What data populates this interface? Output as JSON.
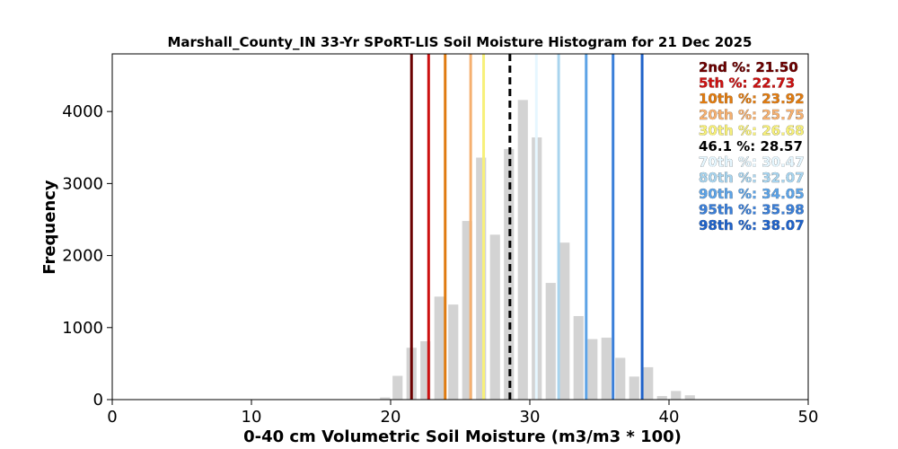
{
  "chart_data": {
    "type": "bar",
    "title": "Marshall_County_IN 33-Yr SPoRT-LIS Soil Moisture Histogram for 21 Dec 2025",
    "xlabel": "0-40 cm Volumetric Soil Moisture (m3/m3 * 100)",
    "ylabel": "Frequency",
    "xlim": [
      0,
      50
    ],
    "ylim": [
      0,
      4800
    ],
    "xticks": [
      0,
      10,
      20,
      30,
      40,
      50
    ],
    "yticks": [
      0,
      1000,
      2000,
      3000,
      4000
    ],
    "grid": false,
    "bar_color": "#d3d3d3",
    "bins": [
      {
        "x": 19.6,
        "count": 30
      },
      {
        "x": 20.5,
        "count": 330
      },
      {
        "x": 21.5,
        "count": 720
      },
      {
        "x": 22.5,
        "count": 810
      },
      {
        "x": 23.5,
        "count": 1430
      },
      {
        "x": 24.5,
        "count": 1320
      },
      {
        "x": 25.5,
        "count": 2480
      },
      {
        "x": 26.5,
        "count": 3360
      },
      {
        "x": 27.5,
        "count": 2290
      },
      {
        "x": 28.5,
        "count": 3480
      },
      {
        "x": 29.5,
        "count": 4160
      },
      {
        "x": 30.5,
        "count": 3640
      },
      {
        "x": 31.5,
        "count": 1620
      },
      {
        "x": 32.5,
        "count": 2180
      },
      {
        "x": 33.5,
        "count": 1160
      },
      {
        "x": 34.5,
        "count": 840
      },
      {
        "x": 35.5,
        "count": 860
      },
      {
        "x": 36.5,
        "count": 580
      },
      {
        "x": 37.5,
        "count": 320
      },
      {
        "x": 38.5,
        "count": 450
      },
      {
        "x": 39.5,
        "count": 50
      },
      {
        "x": 40.5,
        "count": 120
      },
      {
        "x": 41.5,
        "count": 60
      }
    ],
    "percentile_lines": [
      {
        "label": "2nd %: 21.50",
        "value": 21.5,
        "color": "#6b0000",
        "dashed": false
      },
      {
        "label": "5th %: 22.73",
        "value": 22.73,
        "color": "#cc1111",
        "dashed": false
      },
      {
        "label": "10th %: 23.92",
        "value": 23.92,
        "color": "#e07b10",
        "dashed": false
      },
      {
        "label": "20th %: 25.75",
        "value": 25.75,
        "color": "#f5b070",
        "dashed": false
      },
      {
        "label": "30th %: 26.68",
        "value": 26.68,
        "color": "#f7f07a",
        "dashed": false
      },
      {
        "label": "46.1 %: 28.57",
        "value": 28.57,
        "color": "#000000",
        "dashed": true
      },
      {
        "label": "70th %: 30.47",
        "value": 30.47,
        "color": "#e6f7ff",
        "dashed": false
      },
      {
        "label": "80th %: 32.07",
        "value": 32.07,
        "color": "#a8d4ee",
        "dashed": false
      },
      {
        "label": "90th %: 34.05",
        "value": 34.05,
        "color": "#5da3e6",
        "dashed": false
      },
      {
        "label": "95th %: 35.98",
        "value": 35.98,
        "color": "#3a7fd9",
        "dashed": false
      },
      {
        "label": "98th %: 38.07",
        "value": 38.07,
        "color": "#1f62c9",
        "dashed": false
      }
    ]
  }
}
